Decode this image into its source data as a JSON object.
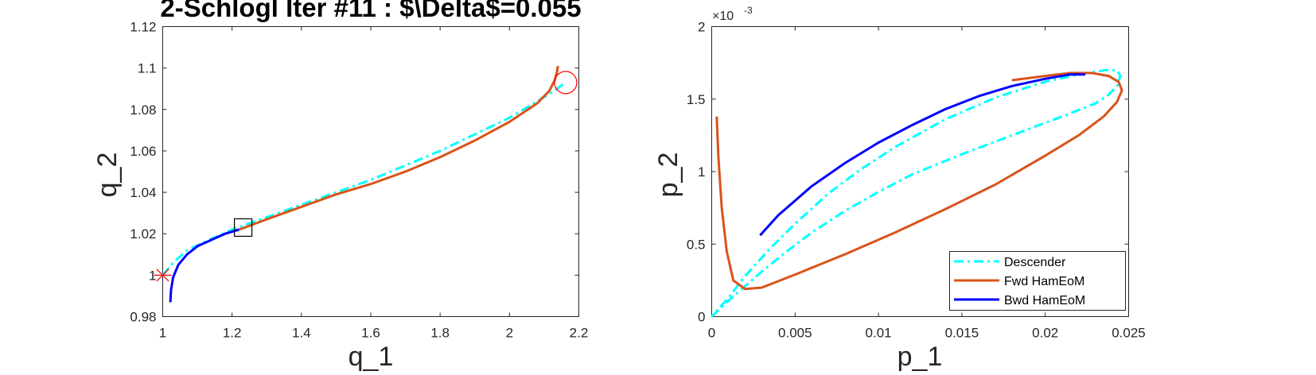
{
  "chart_data": [
    {
      "type": "line",
      "title": "2-Schlogl Iter #11 : $\\Delta$=0.055",
      "xlabel": "q_1",
      "ylabel": "q_2",
      "xlim": [
        1,
        2.2
      ],
      "ylim": [
        0.98,
        1.12
      ],
      "xticks": [
        1,
        1.2,
        1.4,
        1.6,
        1.8,
        2,
        2.2
      ],
      "xtick_labels": [
        "1",
        "1.2",
        "1.4",
        "1.6",
        "1.8",
        "2",
        "2.2"
      ],
      "yticks": [
        0.98,
        1,
        1.02,
        1.04,
        1.06,
        1.08,
        1.1,
        1.12
      ],
      "ytick_labels": [
        "0.98",
        "1",
        "1.02",
        "1.04",
        "1.06",
        "1.08",
        "1.1",
        "1.12"
      ],
      "grid": false,
      "series": [
        {
          "name": "Descender",
          "style": "dash-dot",
          "color": "#00FFFF",
          "x": [
            1.0,
            1.03,
            1.07,
            1.12,
            1.2,
            1.3,
            1.4,
            1.5,
            1.6,
            1.7,
            1.8,
            1.9,
            2.0,
            2.08,
            2.13,
            2.16
          ],
          "y": [
            1.0,
            1.006,
            1.012,
            1.016,
            1.022,
            1.028,
            1.034,
            1.04,
            1.046,
            1.053,
            1.06,
            1.068,
            1.076,
            1.084,
            1.089,
            1.093
          ]
        },
        {
          "name": "Fwd HamEoM",
          "style": "solid",
          "color": "#D95319",
          "x": [
            1.22,
            1.3,
            1.4,
            1.5,
            1.6,
            1.7,
            1.8,
            1.9,
            2.0,
            2.08,
            2.115,
            2.13,
            2.137,
            2.14
          ],
          "y": [
            1.022,
            1.027,
            1.033,
            1.039,
            1.044,
            1.05,
            1.057,
            1.065,
            1.074,
            1.083,
            1.089,
            1.094,
            1.098,
            1.101
          ]
        },
        {
          "name": "Bwd HamEoM",
          "style": "solid",
          "color": "#0000FF",
          "x": [
            1.022,
            1.024,
            1.03,
            1.045,
            1.07,
            1.1,
            1.14,
            1.18,
            1.22
          ],
          "y": [
            0.987,
            0.993,
            0.999,
            1.005,
            1.01,
            1.014,
            1.017,
            1.02,
            1.022
          ]
        }
      ],
      "markers": [
        {
          "shape": "asterisk",
          "color": "#FF0000",
          "x": 1.0,
          "y": 1.0
        },
        {
          "shape": "circle",
          "color": "#FF0000",
          "x": 2.162,
          "y": 1.093
        },
        {
          "shape": "square",
          "color": "#000000",
          "x": 1.232,
          "y": 1.023
        }
      ]
    },
    {
      "type": "line",
      "xlabel": "p_1",
      "ylabel": "p_2",
      "xlim": [
        0,
        0.025
      ],
      "ylim": [
        0,
        0.002
      ],
      "xticks": [
        0,
        0.005,
        0.01,
        0.015,
        0.02,
        0.025
      ],
      "xtick_labels": [
        "0",
        "0.005",
        "0.01",
        "0.015",
        "0.02",
        "0.025"
      ],
      "yticks": [
        0,
        0.0005,
        0.001,
        0.0015,
        0.002
      ],
      "ytick_labels": [
        "0",
        "0.5",
        "1",
        "1.5",
        "2"
      ],
      "y_exponent_label": "×10",
      "y_exponent_power": "-3",
      "grid": false,
      "legend": {
        "placement": "bottom-right",
        "entries": [
          "Descender",
          "Fwd HamEoM",
          "Bwd HamEoM"
        ]
      },
      "series": [
        {
          "name": "Descender",
          "style": "dash-dot",
          "color": "#00FFFF",
          "x": [
            0.0,
            0.001,
            0.002,
            0.003,
            0.0045,
            0.006,
            0.008,
            0.01,
            0.012,
            0.015,
            0.018,
            0.021,
            0.023,
            0.0238,
            0.0243,
            0.0245,
            0.0243,
            0.0236,
            0.022,
            0.02,
            0.017,
            0.014,
            0.011,
            0.009,
            0.007,
            0.005,
            0.0035,
            0.002,
            0.001,
            0.0
          ],
          "y": [
            0.0,
            0.00011,
            0.00021,
            0.00031,
            0.00045,
            0.00058,
            0.00073,
            0.00086,
            0.00098,
            0.00112,
            0.00125,
            0.00138,
            0.00147,
            0.00153,
            0.00159,
            0.00166,
            0.0017,
            0.0017,
            0.00167,
            0.00162,
            0.00151,
            0.00136,
            0.00117,
            0.00102,
            0.00085,
            0.00064,
            0.00047,
            0.00028,
            0.00013,
            0.0
          ]
        },
        {
          "name": "Fwd HamEoM",
          "style": "solid",
          "color": "#D95319",
          "x": [
            0.0003,
            0.0004,
            0.0006,
            0.0009,
            0.0013,
            0.002,
            0.003,
            0.005,
            0.008,
            0.011,
            0.014,
            0.017,
            0.02,
            0.022,
            0.0235,
            0.0243,
            0.0246,
            0.0244,
            0.0238,
            0.0228,
            0.0215,
            0.02,
            0.018
          ],
          "y": [
            0.00138,
            0.0011,
            0.00075,
            0.00045,
            0.00025,
            0.00019,
            0.0002,
            0.00029,
            0.00043,
            0.00058,
            0.00074,
            0.00091,
            0.00111,
            0.00125,
            0.00138,
            0.00148,
            0.00156,
            0.00162,
            0.00166,
            0.00168,
            0.00168,
            0.00166,
            0.00163
          ]
        },
        {
          "name": "Bwd HamEoM",
          "style": "solid",
          "color": "#0000FF",
          "x": [
            0.0029,
            0.004,
            0.006,
            0.008,
            0.01,
            0.012,
            0.014,
            0.016,
            0.018,
            0.02,
            0.0215,
            0.0224
          ],
          "y": [
            0.00056,
            0.0007,
            0.0009,
            0.00106,
            0.0012,
            0.00132,
            0.00143,
            0.00152,
            0.00159,
            0.00164,
            0.00167,
            0.00167
          ]
        }
      ]
    }
  ]
}
